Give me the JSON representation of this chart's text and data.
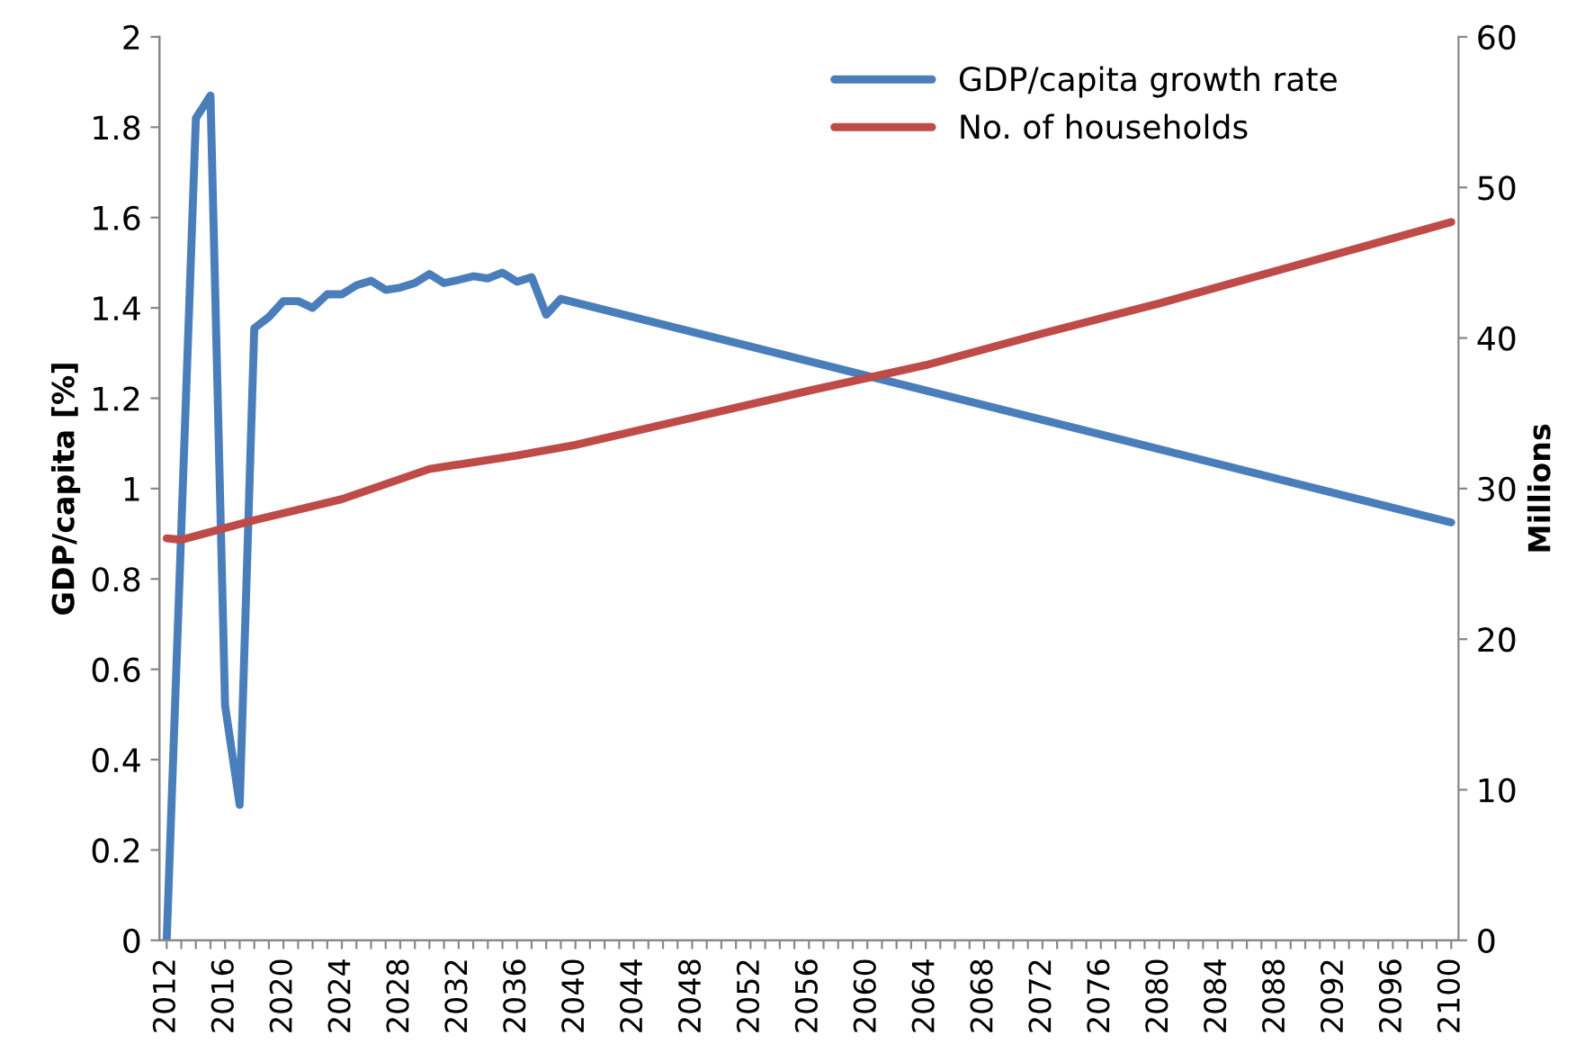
{
  "chart_data": {
    "type": "line",
    "ylabel": "GDP/capita [%]",
    "y2label": "Millions",
    "xlim": [
      2011.5,
      2100.5
    ],
    "xticks": [
      2012,
      {
        "value": 2013,
        "label": null
      },
      {
        "value": 2014,
        "label": null
      },
      {
        "value": 2015,
        "label": null
      },
      2016,
      {
        "value": 2017,
        "label": null
      },
      {
        "value": 2018,
        "label": null
      },
      {
        "value": 2019,
        "label": null
      },
      2020,
      {
        "value": 2021,
        "label": null
      },
      {
        "value": 2022,
        "label": null
      },
      {
        "value": 2023,
        "label": null
      },
      2024,
      {
        "value": 2025,
        "label": null
      },
      {
        "value": 2026,
        "label": null
      },
      {
        "value": 2027,
        "label": null
      },
      2028,
      {
        "value": 2029,
        "label": null
      },
      {
        "value": 2030,
        "label": null
      },
      {
        "value": 2031,
        "label": null
      },
      2032,
      {
        "value": 2033,
        "label": null
      },
      {
        "value": 2034,
        "label": null
      },
      {
        "value": 2035,
        "label": null
      },
      2036,
      {
        "value": 2037,
        "label": null
      },
      {
        "value": 2038,
        "label": null
      },
      {
        "value": 2039,
        "label": null
      },
      2040,
      {
        "value": 2041,
        "label": null
      },
      {
        "value": 2042,
        "label": null
      },
      {
        "value": 2043,
        "label": null
      },
      2044,
      {
        "value": 2045,
        "label": null
      },
      {
        "value": 2046,
        "label": null
      },
      {
        "value": 2047,
        "label": null
      },
      2048,
      {
        "value": 2049,
        "label": null
      },
      {
        "value": 2050,
        "label": null
      },
      {
        "value": 2051,
        "label": null
      },
      2052,
      {
        "value": 2053,
        "label": null
      },
      {
        "value": 2054,
        "label": null
      },
      {
        "value": 2055,
        "label": null
      },
      2056,
      {
        "value": 2057,
        "label": null
      },
      {
        "value": 2058,
        "label": null
      },
      {
        "value": 2059,
        "label": null
      },
      2060,
      {
        "value": 2061,
        "label": null
      },
      {
        "value": 2062,
        "label": null
      },
      {
        "value": 2063,
        "label": null
      },
      2064,
      {
        "value": 2065,
        "label": null
      },
      {
        "value": 2066,
        "label": null
      },
      {
        "value": 2067,
        "label": null
      },
      2068,
      {
        "value": 2069,
        "label": null
      },
      {
        "value": 2070,
        "label": null
      },
      {
        "value": 2071,
        "label": null
      },
      2072,
      {
        "value": 2073,
        "label": null
      },
      {
        "value": 2074,
        "label": null
      },
      {
        "value": 2075,
        "label": null
      },
      2076,
      {
        "value": 2077,
        "label": null
      },
      {
        "value": 2078,
        "label": null
      },
      {
        "value": 2079,
        "label": null
      },
      2080,
      {
        "value": 2081,
        "label": null
      },
      {
        "value": 2082,
        "label": null
      },
      {
        "value": 2083,
        "label": null
      },
      2084,
      {
        "value": 2085,
        "label": null
      },
      {
        "value": 2086,
        "label": null
      },
      {
        "value": 2087,
        "label": null
      },
      2088,
      {
        "value": 2089,
        "label": null
      },
      {
        "value": 2090,
        "label": null
      },
      {
        "value": 2091,
        "label": null
      },
      2092,
      {
        "value": 2093,
        "label": null
      },
      {
        "value": 2094,
        "label": null
      },
      {
        "value": 2095,
        "label": null
      },
      2096,
      {
        "value": 2097,
        "label": null
      },
      {
        "value": 2098,
        "label": null
      },
      {
        "value": 2099,
        "label": null
      },
      2100
    ],
    "ylim": [
      0,
      2
    ],
    "yticks": [
      0,
      0.2,
      0.4,
      0.6,
      0.8,
      {
        "value": 1,
        "label": "1"
      },
      1.2,
      1.4,
      1.6,
      1.8,
      {
        "value": 2,
        "label": "2"
      }
    ],
    "y2lim": [
      0,
      60
    ],
    "y2ticks": [
      0,
      10,
      20,
      30,
      40,
      50,
      60
    ],
    "grid": false,
    "legend": "top right",
    "marker": "none",
    "line_style": "solid",
    "series": [
      {
        "name": "GDP/capita growth rate",
        "color": "#4a7ebb",
        "x": [
          2012,
          2013,
          2014,
          2015,
          2016,
          2017,
          2018,
          2019,
          2020,
          2021,
          2022,
          2023,
          2024,
          2025,
          2026,
          2027,
          2028,
          2029,
          2030,
          2031,
          2032,
          2033,
          2034,
          2035,
          2036,
          2037,
          2038,
          2039,
          2100
        ],
        "values": [
          0,
          0.91,
          1.82,
          1.87,
          0.52,
          0.3,
          1.355,
          1.38,
          1.415,
          1.415,
          1.4,
          1.43,
          1.43,
          1.45,
          1.46,
          1.44,
          1.445,
          1.455,
          1.475,
          1.455,
          1.462,
          1.47,
          1.465,
          1.478,
          1.458,
          1.468,
          1.385,
          1.42,
          0.925
        ]
      },
      {
        "name": "No. of households",
        "color": "#be4b48",
        "axis": "y2",
        "x": [
          2012,
          2013,
          2018,
          2024,
          2030,
          2036,
          2040,
          2056,
          2064,
          2072,
          2080,
          2090,
          2100
        ],
        "values": [
          26.7,
          26.6,
          27.9,
          29.3,
          31.3,
          32.2,
          32.9,
          36.5,
          38.2,
          40.3,
          42.3,
          45.0,
          47.7
        ]
      }
    ]
  }
}
